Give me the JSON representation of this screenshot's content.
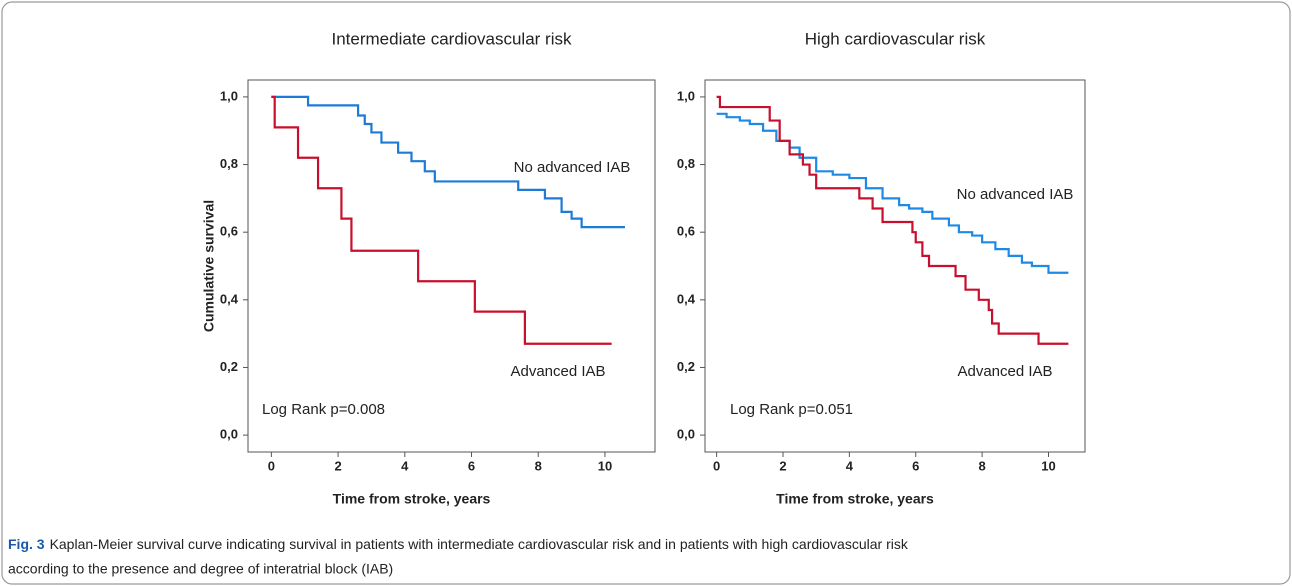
{
  "chart_data": [
    {
      "type": "line",
      "step": true,
      "title": "Intermediate cardiovascular risk",
      "ylabel": "Cumulative survival",
      "xlabel": "Time from stroke, years",
      "xlim": [
        -0.7,
        11.5
      ],
      "xticks": [
        0,
        2,
        4,
        6,
        8,
        10
      ],
      "ylim": [
        -0.05,
        1.05
      ],
      "yticks": [
        {
          "value": 0,
          "label": "0,0"
        },
        {
          "value": 0.2,
          "label": "0,2"
        },
        {
          "value": 0.4,
          "label": "0,4"
        },
        {
          "value": 0.6,
          "label": "0,6"
        },
        {
          "value": 0.8,
          "label": "0,8"
        },
        {
          "value": 1,
          "label": "1,0"
        }
      ],
      "series": [
        {
          "name": "No advanced IAB",
          "color": "#1f7ad6",
          "x": [
            0,
            1.1,
            2.6,
            2.8,
            3.0,
            3.3,
            3.8,
            4.2,
            4.6,
            4.9,
            7.4,
            8.2,
            8.7,
            9.0,
            9.3,
            10.6
          ],
          "values": [
            1,
            0.975,
            0.945,
            0.92,
            0.895,
            0.865,
            0.835,
            0.81,
            0.78,
            0.75,
            0.725,
            0.7,
            0.66,
            0.64,
            0.615,
            0.615
          ]
        },
        {
          "name": "Advanced IAB",
          "color": "#c8102e",
          "x": [
            0,
            0.1,
            0.8,
            1.4,
            2.1,
            2.4,
            4.4,
            6.1,
            7.6,
            10.2
          ],
          "values": [
            1,
            0.91,
            0.82,
            0.73,
            0.64,
            0.545,
            0.455,
            0.365,
            0.27,
            0.27
          ]
        }
      ],
      "annotations": [
        "No advanced IAB",
        "Advanced IAB",
        "Log Rank p=0.008"
      ]
    },
    {
      "type": "line",
      "step": true,
      "title": "High cardiovascular risk",
      "xlabel": "Time from stroke, years",
      "xlim": [
        -0.35,
        11.1
      ],
      "xticks": [
        0,
        2,
        4,
        6,
        8,
        10
      ],
      "ylim": [
        -0.05,
        1.05
      ],
      "yticks": [
        {
          "value": 0,
          "label": "0,0"
        },
        {
          "value": 0.2,
          "label": "0,2"
        },
        {
          "value": 0.4,
          "label": "0,4"
        },
        {
          "value": 0.6,
          "label": "0,6"
        },
        {
          "value": 0.8,
          "label": "0,8"
        },
        {
          "value": 1,
          "label": "1,0"
        }
      ],
      "series": [
        {
          "name": "No advanced IAB",
          "color": "#1f8ae6",
          "x": [
            0,
            0.3,
            0.7,
            1.0,
            1.4,
            1.8,
            2.2,
            2.5,
            3.0,
            3.5,
            4.0,
            4.5,
            5.0,
            5.5,
            5.8,
            6.2,
            6.5,
            7.0,
            7.3,
            7.7,
            8.0,
            8.4,
            8.8,
            9.2,
            9.5,
            10.0,
            10.6
          ],
          "values": [
            0.95,
            0.94,
            0.93,
            0.92,
            0.9,
            0.87,
            0.85,
            0.82,
            0.78,
            0.77,
            0.76,
            0.73,
            0.7,
            0.68,
            0.67,
            0.66,
            0.64,
            0.62,
            0.6,
            0.59,
            0.57,
            0.55,
            0.53,
            0.51,
            0.5,
            0.48,
            0.48
          ]
        },
        {
          "name": "Advanced IAB",
          "color": "#c8102e",
          "x": [
            0,
            0.1,
            1.6,
            1.9,
            2.2,
            2.6,
            2.8,
            3.0,
            4.3,
            4.7,
            5.0,
            5.9,
            6.0,
            6.2,
            6.4,
            7.2,
            7.5,
            7.9,
            8.2,
            8.3,
            8.5,
            9.7,
            10.6
          ],
          "values": [
            1,
            0.97,
            0.93,
            0.87,
            0.83,
            0.8,
            0.77,
            0.73,
            0.7,
            0.67,
            0.63,
            0.6,
            0.57,
            0.53,
            0.5,
            0.47,
            0.43,
            0.4,
            0.37,
            0.33,
            0.3,
            0.27,
            0.27
          ]
        }
      ],
      "annotations": [
        "No advanced IAB",
        "Advanced IAB",
        "Log Rank p=0.051"
      ]
    }
  ],
  "caption": {
    "label": "Fig. 3",
    "text": "Kaplan-Meier survival curve indicating survival in patients with intermediate cardiovascular risk and in patients with high cardiovascular risk",
    "text2": "according to the presence and degree of interatrial block (IAB)"
  }
}
